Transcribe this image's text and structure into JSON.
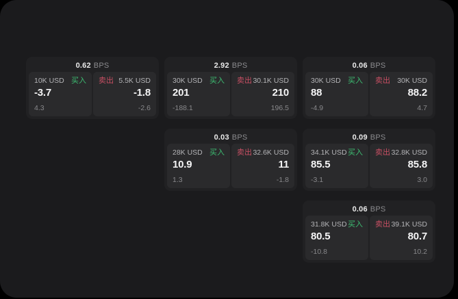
{
  "colors": {
    "container_bg": "#1b1b1d",
    "card_bg": "#212123",
    "panel_bg": "#2a2a2c",
    "buy": "#3dbd72",
    "sell": "#c74f63"
  },
  "labels": {
    "buy": "买入",
    "sell": "卖出",
    "bps_unit": "BPS"
  },
  "cards": [
    {
      "col": 1,
      "row": 1,
      "bps": "0.62",
      "buy": {
        "amount": "10K USD",
        "price": "-3.7",
        "delta": "4.3"
      },
      "sell": {
        "amount": "5.5K USD",
        "price": "-1.8",
        "delta": "-2.6"
      }
    },
    {
      "col": 2,
      "row": 1,
      "bps": "2.92",
      "buy": {
        "amount": "30K USD",
        "price": "201",
        "delta": "-188.1"
      },
      "sell": {
        "amount": "30.1K USD",
        "price": "210",
        "delta": "196.5"
      }
    },
    {
      "col": 3,
      "row": 1,
      "bps": "0.06",
      "buy": {
        "amount": "30K USD",
        "price": "88",
        "delta": "-4.9"
      },
      "sell": {
        "amount": "30K USD",
        "price": "88.2",
        "delta": "4.7"
      }
    },
    {
      "col": 2,
      "row": 2,
      "bps": "0.03",
      "buy": {
        "amount": "28K USD",
        "price": "10.9",
        "delta": "1.3"
      },
      "sell": {
        "amount": "32.6K USD",
        "price": "11",
        "delta": "-1.8"
      }
    },
    {
      "col": 3,
      "row": 2,
      "bps": "0.09",
      "buy": {
        "amount": "34.1K USD",
        "price": "85.5",
        "delta": "-3.1"
      },
      "sell": {
        "amount": "32.8K USD",
        "price": "85.8",
        "delta": "3.0"
      }
    },
    {
      "col": 3,
      "row": 3,
      "bps": "0.06",
      "buy": {
        "amount": "31.8K USD",
        "price": "80.5",
        "delta": "-10.8"
      },
      "sell": {
        "amount": "39.1K USD",
        "price": "80.7",
        "delta": "10.2"
      }
    }
  ]
}
